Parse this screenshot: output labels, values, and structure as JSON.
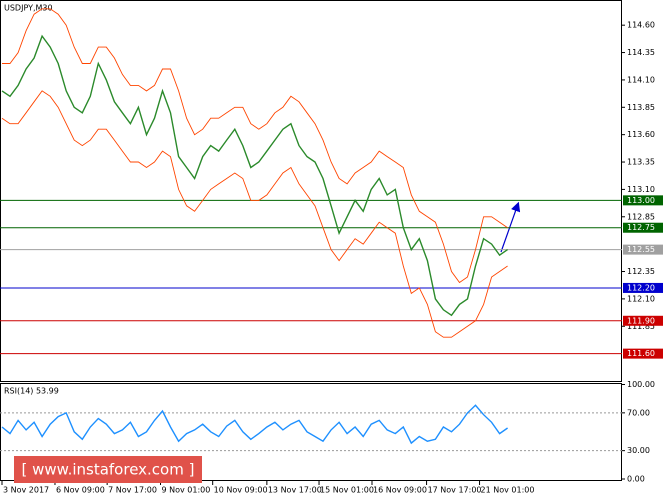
{
  "chart_data": [
    {
      "type": "line",
      "title": "USDJPY,M30",
      "x": [
        0,
        1,
        2,
        3,
        4,
        5,
        6,
        7,
        8,
        9,
        10,
        11,
        12,
        13,
        14,
        15,
        16,
        17,
        18,
        19,
        20,
        21,
        22,
        23,
        24,
        25,
        26,
        27,
        28,
        29,
        30,
        31,
        32,
        33,
        34,
        35,
        36,
        37,
        38,
        39,
        40,
        41,
        42,
        43,
        44,
        45,
        46,
        47,
        48,
        49,
        50,
        51,
        52,
        53,
        54,
        55,
        56,
        57,
        58,
        59,
        60,
        61,
        62,
        63
      ],
      "series": [
        {
          "color": "#2b8a2b",
          "values": [
            114.0,
            113.95,
            114.05,
            114.2,
            114.3,
            114.5,
            114.4,
            114.25,
            114.0,
            113.85,
            113.8,
            113.95,
            114.25,
            114.1,
            113.9,
            113.8,
            113.7,
            113.85,
            113.6,
            113.75,
            114.0,
            113.8,
            113.4,
            113.3,
            113.2,
            113.4,
            113.5,
            113.45,
            113.55,
            113.65,
            113.5,
            113.3,
            113.35,
            113.45,
            113.55,
            113.65,
            113.7,
            113.5,
            113.4,
            113.35,
            113.2,
            112.95,
            112.7,
            112.85,
            113.0,
            112.9,
            113.1,
            113.2,
            113.05,
            113.1,
            112.75,
            112.55,
            112.65,
            112.45,
            112.1,
            112.0,
            111.95,
            112.05,
            112.1,
            112.4,
            112.65,
            112.6,
            112.5,
            112.55
          ]
        },
        {
          "color": "#ff4500",
          "values": [
            114.25,
            114.25,
            114.35,
            114.55,
            114.7,
            114.75,
            114.75,
            114.7,
            114.6,
            114.4,
            114.25,
            114.25,
            114.4,
            114.4,
            114.3,
            114.15,
            114.05,
            114.05,
            114.0,
            114.05,
            114.2,
            114.2,
            114.0,
            113.75,
            113.6,
            113.65,
            113.75,
            113.75,
            113.8,
            113.85,
            113.85,
            113.7,
            113.65,
            113.7,
            113.8,
            113.85,
            113.95,
            113.9,
            113.8,
            113.7,
            113.55,
            113.35,
            113.2,
            113.15,
            113.25,
            113.3,
            113.35,
            113.45,
            113.4,
            113.35,
            113.3,
            113.05,
            112.9,
            112.85,
            112.8,
            112.6,
            112.35,
            112.25,
            112.3,
            112.55,
            112.85,
            112.85,
            112.8,
            112.75
          ]
        },
        {
          "color": "#ff4500",
          "values": [
            113.75,
            113.7,
            113.7,
            113.8,
            113.9,
            114.0,
            113.95,
            113.85,
            113.7,
            113.55,
            113.5,
            113.55,
            113.65,
            113.65,
            113.55,
            113.45,
            113.35,
            113.35,
            113.3,
            113.35,
            113.45,
            113.4,
            113.1,
            112.95,
            112.9,
            113.0,
            113.1,
            113.15,
            113.2,
            113.25,
            113.2,
            113.0,
            113.0,
            113.05,
            113.15,
            113.25,
            113.3,
            113.15,
            113.05,
            112.95,
            112.75,
            112.55,
            112.45,
            112.55,
            112.65,
            112.6,
            112.7,
            112.8,
            112.75,
            112.7,
            112.4,
            112.15,
            112.2,
            112.05,
            111.8,
            111.75,
            111.75,
            111.8,
            111.85,
            111.9,
            112.05,
            112.3,
            112.35,
            112.4
          ]
        }
      ],
      "xlim": [
        -0.25,
        77.25
      ],
      "xticks": [
        {
          "value": 0,
          "label": "3 Nov 2017"
        },
        {
          "value": 6.6,
          "label": "6 Nov 09:00"
        },
        {
          "value": 13.1,
          "label": "7 Nov 17:00"
        },
        {
          "value": 19.75,
          "label": "9 Nov 01:00"
        },
        {
          "value": 26.25,
          "label": "10 Nov 09:00"
        },
        {
          "value": 33,
          "label": "13 Nov 17:00"
        },
        {
          "value": 39.5,
          "label": "15 Nov 01:00"
        },
        {
          "value": 46.1,
          "label": "16 Nov 09:00"
        },
        {
          "value": 52.9,
          "label": "17 Nov 17:00"
        },
        {
          "value": 59.5,
          "label": "21 Nov 01:00"
        }
      ],
      "ylim": [
        111.35,
        114.83
      ],
      "yticks": [
        {
          "value": 114.6,
          "label": "114.60"
        },
        {
          "value": 114.35,
          "label": "114.35"
        },
        {
          "value": 114.1,
          "label": "114.10"
        },
        {
          "value": 113.85,
          "label": "113.85"
        },
        {
          "value": 113.6,
          "label": "113.60"
        },
        {
          "value": 113.35,
          "label": "113.35"
        },
        {
          "value": 113.1,
          "label": "113.10"
        },
        {
          "value": 112.85,
          "label": "112.85"
        },
        {
          "value": 112.35,
          "label": "112.35"
        },
        {
          "value": 112.1,
          "label": "112.10"
        },
        {
          "value": 111.85,
          "label": "111.85"
        }
      ],
      "levels": [
        {
          "value": 113,
          "label": "113.00",
          "color": "#006400"
        },
        {
          "value": 112.75,
          "label": "112.75",
          "color": "#006400"
        },
        {
          "value": 112.55,
          "label": "112.55",
          "color": "#a0a0a0"
        },
        {
          "value": 112.2,
          "label": "112.20",
          "color": "#0000cd"
        },
        {
          "value": 111.9,
          "label": "111.90",
          "color": "#cc0000"
        },
        {
          "value": 111.6,
          "label": "111.60",
          "color": "#cc0000"
        }
      ]
    },
    {
      "type": "line",
      "title": "RSI(14) 53.99",
      "x": [
        0,
        1,
        2,
        3,
        4,
        5,
        6,
        7,
        8,
        9,
        10,
        11,
        12,
        13,
        14,
        15,
        16,
        17,
        18,
        19,
        20,
        21,
        22,
        23,
        24,
        25,
        26,
        27,
        28,
        29,
        30,
        31,
        32,
        33,
        34,
        35,
        36,
        37,
        38,
        39,
        40,
        41,
        42,
        43,
        44,
        45,
        46,
        47,
        48,
        49,
        50,
        51,
        52,
        53,
        54,
        55,
        56,
        57,
        58,
        59,
        60,
        61,
        62,
        63
      ],
      "series": [
        {
          "color": "#1e90ff",
          "values": [
            55,
            48,
            62,
            52,
            60,
            45,
            58,
            66,
            70,
            50,
            42,
            55,
            64,
            58,
            48,
            52,
            60,
            45,
            50,
            62,
            72,
            55,
            40,
            48,
            52,
            58,
            50,
            45,
            56,
            62,
            50,
            42,
            48,
            55,
            60,
            52,
            58,
            62,
            50,
            45,
            40,
            52,
            60,
            48,
            55,
            45,
            58,
            62,
            52,
            48,
            55,
            38,
            45,
            40,
            42,
            55,
            50,
            58,
            70,
            78,
            68,
            60,
            48,
            54
          ]
        }
      ],
      "xlim": [
        -0.25,
        77.25
      ],
      "ylim": [
        0,
        100
      ],
      "yticks": [
        {
          "value": 100,
          "label": "100.00"
        },
        {
          "value": 70,
          "label": "70.00"
        },
        {
          "value": 30,
          "label": "30.00"
        },
        {
          "value": 0,
          "label": "0.00"
        }
      ]
    }
  ],
  "watermark": "[ www.instaforex.com ]"
}
